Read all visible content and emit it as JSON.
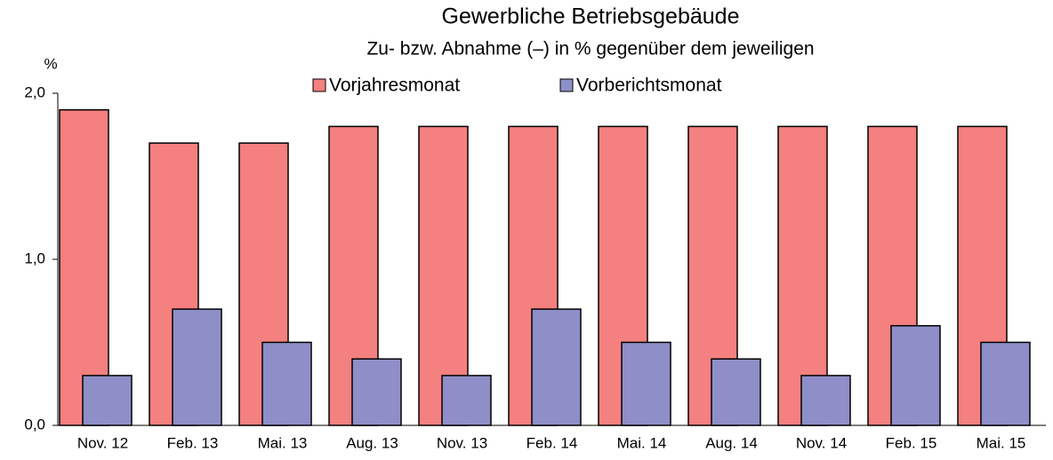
{
  "chart_data": {
    "type": "bar",
    "title": "Gewerbliche Betriebsgebäude",
    "subtitle": "Zu- bzw. Abnahme (–) in % gegenüber dem jeweiligen",
    "y_label": "%",
    "categories": [
      "Nov. 12",
      "Feb. 13",
      "Mai. 13",
      "Aug. 13",
      "Nov. 13",
      "Feb. 14",
      "Mai. 14",
      "Aug. 14",
      "Nov. 14",
      "Feb. 15",
      "Mai. 15"
    ],
    "series": [
      {
        "name": "Vorjahresmonat",
        "color": "#f4807f",
        "values": [
          1.9,
          1.7,
          1.7,
          1.8,
          1.8,
          1.8,
          1.8,
          1.8,
          1.8,
          1.8,
          1.8
        ]
      },
      {
        "name": "Vorberichtsmonat",
        "color": "#8e8fc8",
        "values": [
          0.3,
          0.7,
          0.5,
          0.4,
          0.3,
          0.7,
          0.5,
          0.4,
          0.3,
          0.6,
          0.5
        ]
      }
    ],
    "ylim": [
      0,
      2
    ],
    "yticks": [
      {
        "value": 0,
        "label": "0,0"
      },
      {
        "value": 1,
        "label": "1,0"
      },
      {
        "value": 2,
        "label": "2,0"
      }
    ],
    "grid": false
  }
}
